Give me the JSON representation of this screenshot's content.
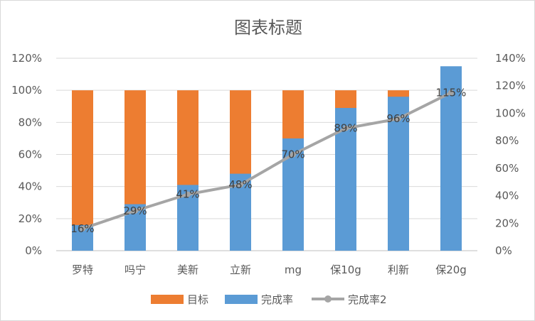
{
  "chart_data": {
    "type": "bar",
    "title": "图表标题",
    "categories": [
      "罗特",
      "吗宁",
      "美新",
      "立新",
      "mg",
      "保10g",
      "利新",
      "保20g"
    ],
    "series": [
      {
        "name": "目标",
        "kind": "bar",
        "axis": "primary",
        "color": "#ed7d31",
        "values": [
          1,
          1,
          1,
          1,
          1,
          1,
          1,
          1
        ]
      },
      {
        "name": "完成率",
        "kind": "bar",
        "axis": "primary",
        "color": "#5b9bd5",
        "values": [
          0.16,
          0.29,
          0.41,
          0.48,
          0.7,
          0.89,
          0.96,
          1.15
        ]
      },
      {
        "name": "完成率2",
        "kind": "line",
        "axis": "secondary",
        "color": "#a5a5a5",
        "values": [
          0.16,
          0.29,
          0.41,
          0.48,
          0.7,
          0.89,
          0.96,
          1.15
        ]
      }
    ],
    "data_labels": [
      "16%",
      "29%",
      "41%",
      "48%",
      "70%",
      "89%",
      "96%",
      "115%"
    ],
    "y_left": {
      "min": 0,
      "max": 1.2,
      "ticks": [
        "0%",
        "20%",
        "40%",
        "60%",
        "80%",
        "100%",
        "120%"
      ]
    },
    "y_right": {
      "min": 0,
      "max": 1.4,
      "ticks": [
        "0%",
        "20%",
        "40%",
        "60%",
        "80%",
        "100%",
        "120%",
        "140%"
      ]
    },
    "legend": [
      "目标",
      "完成率",
      "完成率2"
    ],
    "legend_position": "bottom",
    "grid": true,
    "xlabel": "",
    "ylabel": ""
  }
}
